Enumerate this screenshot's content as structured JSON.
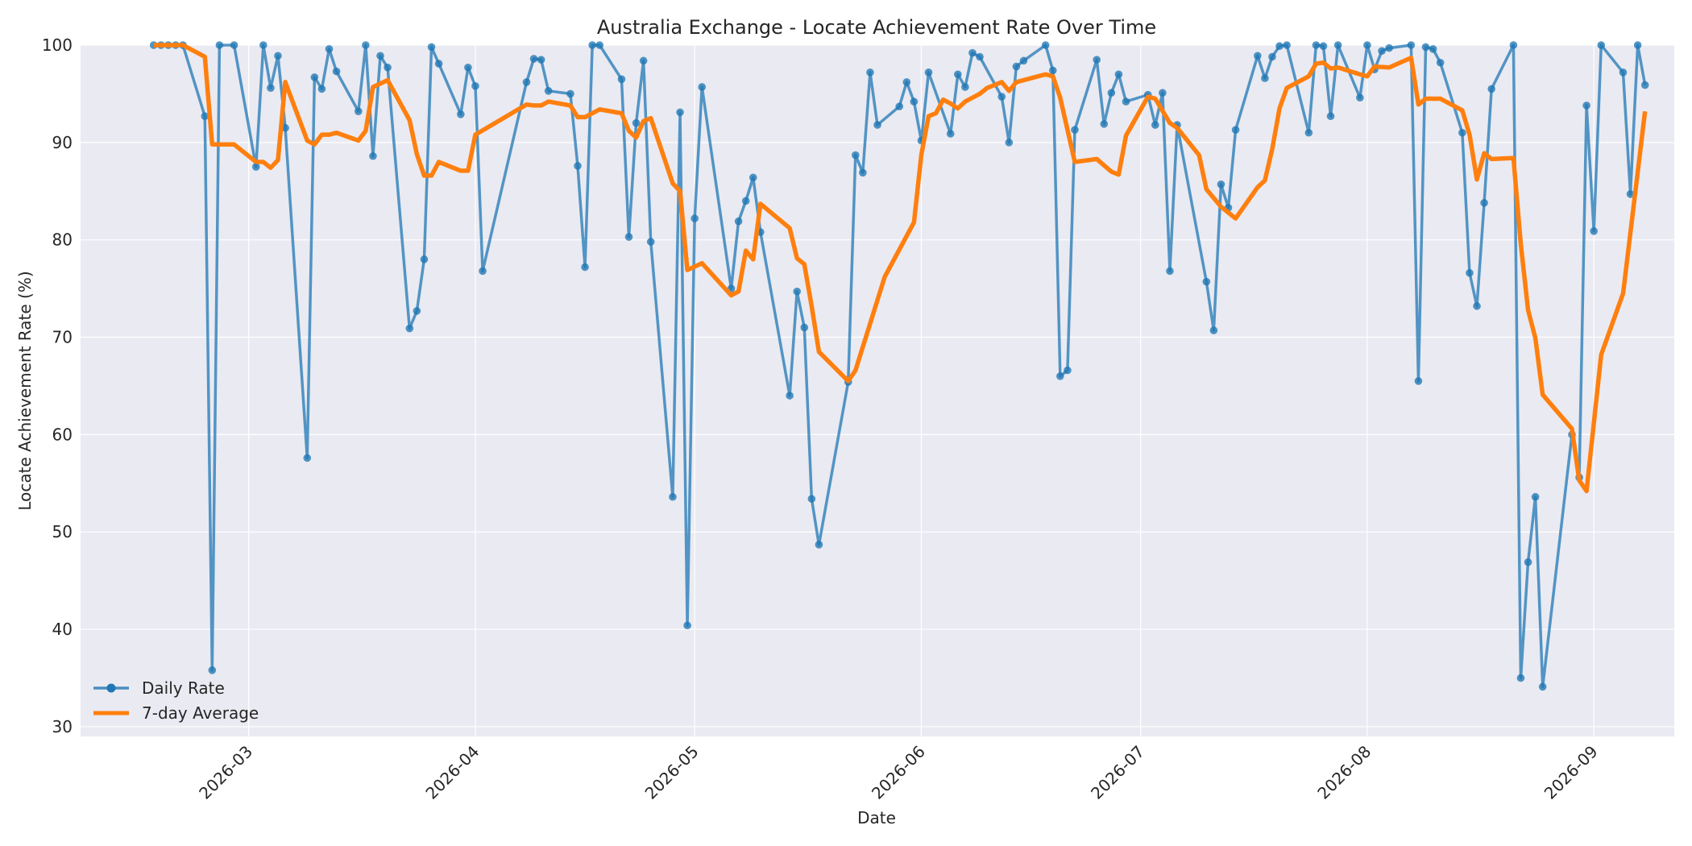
{
  "chart_data": {
    "type": "line",
    "title": "Australia Exchange - Locate Achievement Rate Over Time",
    "xlabel": "Date",
    "ylabel": "Locate Achievement Rate (%)",
    "xlim": [
      "2026-02-06",
      "2026-09-12"
    ],
    "ylim": [
      29,
      100
    ],
    "x_ticks": [
      "2026-03",
      "2026-04",
      "2026-05",
      "2026-06",
      "2026-07",
      "2026-08",
      "2026-09"
    ],
    "y_ticks": [
      30,
      40,
      50,
      60,
      70,
      80,
      90,
      100
    ],
    "grid": true,
    "legend_position": "lower-left",
    "colors": {
      "daily": "#1f77b4",
      "avg": "#ff7f0e",
      "plot_bg": "#eaeaf2",
      "grid": "#ffffff"
    },
    "series": [
      {
        "name": "Daily Rate",
        "style": "line-marker",
        "points": [
          [
            "2026-02-16",
            100
          ],
          [
            "2026-02-17",
            100
          ],
          [
            "2026-02-18",
            100
          ],
          [
            "2026-02-19",
            100
          ],
          [
            "2026-02-20",
            100
          ],
          [
            "2026-02-23",
            92.7
          ],
          [
            "2026-02-24",
            35.8
          ],
          [
            "2026-02-25",
            100
          ],
          [
            "2026-02-27",
            100
          ],
          [
            "2026-03-02",
            87.5
          ],
          [
            "2026-03-03",
            100
          ],
          [
            "2026-03-04",
            95.6
          ],
          [
            "2026-03-05",
            98.9
          ],
          [
            "2026-03-06",
            91.5
          ],
          [
            "2026-03-09",
            57.6
          ],
          [
            "2026-03-10",
            96.7
          ],
          [
            "2026-03-11",
            95.5
          ],
          [
            "2026-03-12",
            99.6
          ],
          [
            "2026-03-13",
            97.3
          ],
          [
            "2026-03-16",
            93.2
          ],
          [
            "2026-03-17",
            100
          ],
          [
            "2026-03-18",
            88.6
          ],
          [
            "2026-03-19",
            98.9
          ],
          [
            "2026-03-20",
            97.7
          ],
          [
            "2026-03-23",
            70.9
          ],
          [
            "2026-03-24",
            72.7
          ],
          [
            "2026-03-25",
            78
          ],
          [
            "2026-03-26",
            99.8
          ],
          [
            "2026-03-27",
            98.1
          ],
          [
            "2026-03-30",
            92.9
          ],
          [
            "2026-03-31",
            97.7
          ],
          [
            "2026-04-01",
            95.8
          ],
          [
            "2026-04-02",
            76.8
          ],
          [
            "2026-04-08",
            96.2
          ],
          [
            "2026-04-09",
            98.6
          ],
          [
            "2026-04-10",
            98.5
          ],
          [
            "2026-04-11",
            95.3
          ],
          [
            "2026-04-14",
            95
          ],
          [
            "2026-04-15",
            87.6
          ],
          [
            "2026-04-16",
            77.2
          ],
          [
            "2026-04-17",
            100
          ],
          [
            "2026-04-18",
            100
          ],
          [
            "2026-04-21",
            96.5
          ],
          [
            "2026-04-22",
            80.3
          ],
          [
            "2026-04-23",
            92
          ],
          [
            "2026-04-24",
            98.4
          ],
          [
            "2026-04-25",
            79.8
          ],
          [
            "2026-04-28",
            53.6
          ],
          [
            "2026-04-29",
            93.1
          ],
          [
            "2026-04-30",
            40.4
          ],
          [
            "2026-05-01",
            82.2
          ],
          [
            "2026-05-02",
            95.7
          ],
          [
            "2026-05-06",
            75
          ],
          [
            "2026-05-07",
            81.9
          ],
          [
            "2026-05-08",
            84
          ],
          [
            "2026-05-09",
            86.4
          ],
          [
            "2026-05-10",
            80.8
          ],
          [
            "2026-05-14",
            64
          ],
          [
            "2026-05-15",
            74.7
          ],
          [
            "2026-05-16",
            71
          ],
          [
            "2026-05-17",
            53.4
          ],
          [
            "2026-05-18",
            48.7
          ],
          [
            "2026-05-22",
            65.4
          ],
          [
            "2026-05-23",
            88.7
          ],
          [
            "2026-05-24",
            86.9
          ],
          [
            "2026-05-25",
            97.2
          ],
          [
            "2026-05-26",
            91.8
          ],
          [
            "2026-05-29",
            93.7
          ],
          [
            "2026-05-30",
            96.2
          ],
          [
            "2026-05-31",
            94.2
          ],
          [
            "2026-06-01",
            90.2
          ],
          [
            "2026-06-02",
            97.2
          ],
          [
            "2026-06-05",
            90.9
          ],
          [
            "2026-06-06",
            97
          ],
          [
            "2026-06-07",
            95.7
          ],
          [
            "2026-06-08",
            99.2
          ],
          [
            "2026-06-09",
            98.8
          ],
          [
            "2026-06-12",
            94.7
          ],
          [
            "2026-06-13",
            90
          ],
          [
            "2026-06-14",
            97.8
          ],
          [
            "2026-06-15",
            98.4
          ],
          [
            "2026-06-18",
            100
          ],
          [
            "2026-06-19",
            97.4
          ],
          [
            "2026-06-20",
            66
          ],
          [
            "2026-06-21",
            66.6
          ],
          [
            "2026-06-22",
            91.3
          ],
          [
            "2026-06-25",
            98.5
          ],
          [
            "2026-06-26",
            91.9
          ],
          [
            "2026-06-27",
            95.1
          ],
          [
            "2026-06-28",
            97
          ],
          [
            "2026-06-29",
            94.2
          ],
          [
            "2026-07-02",
            94.9
          ],
          [
            "2026-07-03",
            91.8
          ],
          [
            "2026-07-04",
            95.1
          ],
          [
            "2026-07-05",
            76.8
          ],
          [
            "2026-07-06",
            91.8
          ],
          [
            "2026-07-10",
            75.7
          ],
          [
            "2026-07-11",
            70.7
          ],
          [
            "2026-07-12",
            85.7
          ],
          [
            "2026-07-13",
            83.3
          ],
          [
            "2026-07-14",
            91.3
          ],
          [
            "2026-07-17",
            98.9
          ],
          [
            "2026-07-18",
            96.6
          ],
          [
            "2026-07-19",
            98.8
          ],
          [
            "2026-07-20",
            99.9
          ],
          [
            "2026-07-21",
            100
          ],
          [
            "2026-07-24",
            91
          ],
          [
            "2026-07-25",
            100
          ],
          [
            "2026-07-26",
            99.9
          ],
          [
            "2026-07-27",
            92.7
          ],
          [
            "2026-07-28",
            100
          ],
          [
            "2026-07-31",
            94.6
          ],
          [
            "2026-08-01",
            100
          ],
          [
            "2026-08-02",
            97.5
          ],
          [
            "2026-08-03",
            99.4
          ],
          [
            "2026-08-04",
            99.7
          ],
          [
            "2026-08-07",
            100
          ],
          [
            "2026-08-08",
            65.5
          ],
          [
            "2026-08-09",
            99.8
          ],
          [
            "2026-08-10",
            99.6
          ],
          [
            "2026-08-11",
            98.2
          ],
          [
            "2026-08-14",
            91
          ],
          [
            "2026-08-15",
            76.6
          ],
          [
            "2026-08-16",
            73.2
          ],
          [
            "2026-08-17",
            83.8
          ],
          [
            "2026-08-18",
            95.5
          ],
          [
            "2026-08-21",
            100
          ],
          [
            "2026-08-22",
            35
          ],
          [
            "2026-08-23",
            46.9
          ],
          [
            "2026-08-24",
            53.6
          ],
          [
            "2026-08-25",
            34.1
          ],
          [
            "2026-08-29",
            60
          ],
          [
            "2026-08-30",
            55.6
          ],
          [
            "2026-08-31",
            93.8
          ],
          [
            "2026-09-01",
            80.9
          ],
          [
            "2026-09-02",
            100
          ],
          [
            "2026-09-05",
            97.2
          ],
          [
            "2026-09-06",
            84.7
          ],
          [
            "2026-09-07",
            100
          ],
          [
            "2026-09-08",
            95.9
          ]
        ]
      },
      {
        "name": "7-day Average",
        "style": "line",
        "points": [
          [
            "2026-02-16",
            100
          ],
          [
            "2026-02-20",
            100
          ],
          [
            "2026-02-23",
            98.8
          ],
          [
            "2026-02-24",
            89.8
          ],
          [
            "2026-02-25",
            89.8
          ],
          [
            "2026-02-27",
            89.8
          ],
          [
            "2026-03-02",
            88
          ],
          [
            "2026-03-03",
            88
          ],
          [
            "2026-03-04",
            87.4
          ],
          [
            "2026-03-05",
            88.2
          ],
          [
            "2026-03-06",
            96.2
          ],
          [
            "2026-03-09",
            90.2
          ],
          [
            "2026-03-10",
            89.8
          ],
          [
            "2026-03-11",
            90.8
          ],
          [
            "2026-03-12",
            90.8
          ],
          [
            "2026-03-13",
            91
          ],
          [
            "2026-03-16",
            90.2
          ],
          [
            "2026-03-17",
            91.2
          ],
          [
            "2026-03-18",
            95.7
          ],
          [
            "2026-03-20",
            96.4
          ],
          [
            "2026-03-23",
            92.3
          ],
          [
            "2026-03-24",
            88.8
          ],
          [
            "2026-03-25",
            86.6
          ],
          [
            "2026-03-26",
            86.6
          ],
          [
            "2026-03-27",
            88
          ],
          [
            "2026-03-30",
            87.1
          ],
          [
            "2026-03-31",
            87.1
          ],
          [
            "2026-04-01",
            90.8
          ],
          [
            "2026-04-08",
            93.9
          ],
          [
            "2026-04-09",
            93.8
          ],
          [
            "2026-04-10",
            93.8
          ],
          [
            "2026-04-11",
            94.2
          ],
          [
            "2026-04-14",
            93.8
          ],
          [
            "2026-04-15",
            92.6
          ],
          [
            "2026-04-16",
            92.6
          ],
          [
            "2026-04-18",
            93.4
          ],
          [
            "2026-04-21",
            93
          ],
          [
            "2026-04-22",
            91.2
          ],
          [
            "2026-04-23",
            90.5
          ],
          [
            "2026-04-24",
            92.2
          ],
          [
            "2026-04-25",
            92.5
          ],
          [
            "2026-04-28",
            85.8
          ],
          [
            "2026-04-29",
            85
          ],
          [
            "2026-04-30",
            76.9
          ],
          [
            "2026-05-02",
            77.6
          ],
          [
            "2026-05-06",
            74.3
          ],
          [
            "2026-05-07",
            74.7
          ],
          [
            "2026-05-08",
            78.9
          ],
          [
            "2026-05-09",
            78
          ],
          [
            "2026-05-10",
            83.7
          ],
          [
            "2026-05-14",
            81.2
          ],
          [
            "2026-05-15",
            78.1
          ],
          [
            "2026-05-16",
            77.5
          ],
          [
            "2026-05-17",
            73.2
          ],
          [
            "2026-05-18",
            68.5
          ],
          [
            "2026-05-22",
            65.5
          ],
          [
            "2026-05-23",
            66.6
          ],
          [
            "2026-05-27",
            76.2
          ],
          [
            "2026-05-31",
            81.8
          ],
          [
            "2026-06-01",
            88.7
          ],
          [
            "2026-06-02",
            92.7
          ],
          [
            "2026-06-03",
            93
          ],
          [
            "2026-06-04",
            94.4
          ],
          [
            "2026-06-05",
            94
          ],
          [
            "2026-06-06",
            93.5
          ],
          [
            "2026-06-07",
            94.2
          ],
          [
            "2026-06-08",
            94.6
          ],
          [
            "2026-06-09",
            95
          ],
          [
            "2026-06-10",
            95.6
          ],
          [
            "2026-06-12",
            96.2
          ],
          [
            "2026-06-13",
            95.3
          ],
          [
            "2026-06-14",
            96.2
          ],
          [
            "2026-06-18",
            97
          ],
          [
            "2026-06-19",
            96.8
          ],
          [
            "2026-06-20",
            94.6
          ],
          [
            "2026-06-22",
            88
          ],
          [
            "2026-06-25",
            88.3
          ],
          [
            "2026-06-27",
            87
          ],
          [
            "2026-06-28",
            86.7
          ],
          [
            "2026-06-29",
            90.7
          ],
          [
            "2026-07-02",
            94.7
          ],
          [
            "2026-07-03",
            94.5
          ],
          [
            "2026-07-05",
            92
          ],
          [
            "2026-07-06",
            91.5
          ],
          [
            "2026-07-09",
            88.7
          ],
          [
            "2026-07-10",
            85.2
          ],
          [
            "2026-07-11",
            84.3
          ],
          [
            "2026-07-12",
            83.4
          ],
          [
            "2026-07-14",
            82.2
          ],
          [
            "2026-07-17",
            85.4
          ],
          [
            "2026-07-18",
            86.1
          ],
          [
            "2026-07-19",
            89.3
          ],
          [
            "2026-07-20",
            93.5
          ],
          [
            "2026-07-21",
            95.6
          ],
          [
            "2026-07-24",
            96.8
          ],
          [
            "2026-07-25",
            98.1
          ],
          [
            "2026-07-26",
            98.2
          ],
          [
            "2026-07-27",
            97.6
          ],
          [
            "2026-07-28",
            97.7
          ],
          [
            "2026-07-31",
            97
          ],
          [
            "2026-08-01",
            96.8
          ],
          [
            "2026-08-02",
            97.8
          ],
          [
            "2026-08-04",
            97.7
          ],
          [
            "2026-08-07",
            98.7
          ],
          [
            "2026-08-08",
            93.9
          ],
          [
            "2026-08-09",
            94.5
          ],
          [
            "2026-08-11",
            94.5
          ],
          [
            "2026-08-14",
            93.3
          ],
          [
            "2026-08-15",
            90.8
          ],
          [
            "2026-08-16",
            86.2
          ],
          [
            "2026-08-17",
            88.9
          ],
          [
            "2026-08-18",
            88.3
          ],
          [
            "2026-08-21",
            88.4
          ],
          [
            "2026-08-22",
            79.6
          ],
          [
            "2026-08-23",
            72.8
          ],
          [
            "2026-08-24",
            69.9
          ],
          [
            "2026-08-25",
            64.1
          ],
          [
            "2026-08-29",
            60.6
          ],
          [
            "2026-08-30",
            55.3
          ],
          [
            "2026-08-31",
            54.2
          ],
          [
            "2026-09-02",
            68.2
          ],
          [
            "2026-09-05",
            74.5
          ],
          [
            "2026-09-08",
            93.2
          ]
        ]
      }
    ]
  }
}
